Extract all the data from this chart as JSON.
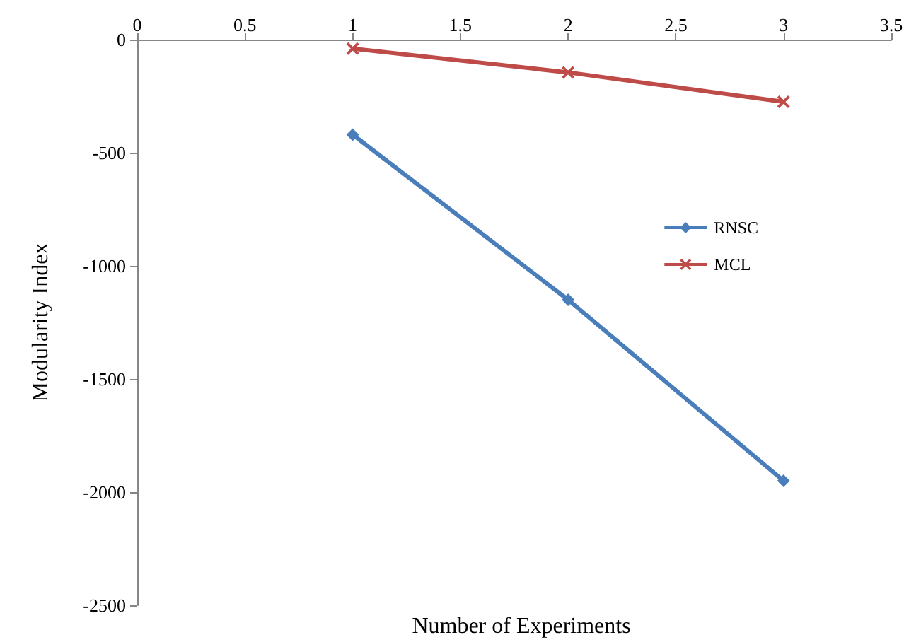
{
  "chart_data": {
    "type": "line",
    "xlabel": "Number of Experiments",
    "ylabel": "Modularity Index",
    "x": [
      1,
      2,
      3
    ],
    "series": [
      {
        "name": "RNSC",
        "color": "#4a7ebb",
        "values": [
          -420,
          -1150,
          -1950
        ],
        "marker": "diamond"
      },
      {
        "name": "MCL",
        "color": "#be4b48",
        "values": [
          -40,
          -145,
          -275
        ],
        "marker": "cross"
      }
    ],
    "xlim": [
      0,
      3.5
    ],
    "xticks": [
      0,
      0.5,
      1,
      1.5,
      2,
      2.5,
      3,
      3.5
    ],
    "ylim": [
      -2500,
      0
    ],
    "yticks": [
      -2500,
      -2000,
      -1500,
      -1000,
      -500,
      0
    ],
    "grid": false,
    "legend": "right",
    "line_style": "solid"
  }
}
